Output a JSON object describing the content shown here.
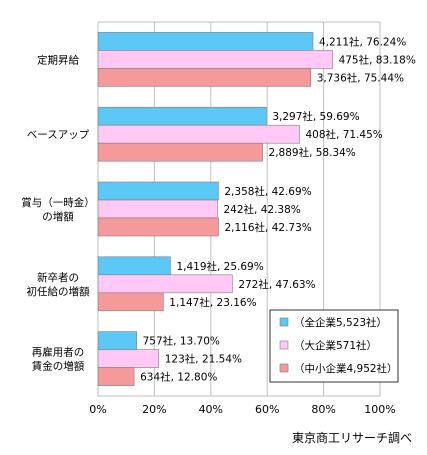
{
  "chart_data": {
    "type": "bar",
    "orientation": "horizontal",
    "categories": [
      [
        "定期昇給"
      ],
      [
        "ベースアップ"
      ],
      [
        "賞与（一時金）",
        "の増額"
      ],
      [
        "新卒者の",
        "初任給の増額"
      ],
      [
        "再雇用者の",
        "賃金の増額"
      ]
    ],
    "series": [
      {
        "name": "（全企業5,523社）",
        "color": "#5bc8f5",
        "values": [
          76.24,
          59.69,
          42.69,
          25.69,
          13.7
        ],
        "labels": [
          "4,211社, 76.24%",
          "3,297社, 59.69%",
          "2,358社, 42.69%",
          "1,419社, 25.69%",
          "757社, 13.70%"
        ]
      },
      {
        "name": "（大企業571社）",
        "color": "#ffc8f5",
        "values": [
          83.18,
          71.45,
          42.38,
          47.63,
          21.54
        ],
        "labels": [
          "475社, 83.18%",
          "408社, 71.45%",
          "242社, 42.38%",
          "272社, 47.63%",
          "123社, 21.54%"
        ]
      },
      {
        "name": "（中小企業4,952社）",
        "color": "#f59a9a",
        "values": [
          75.44,
          58.34,
          42.73,
          23.16,
          12.8
        ],
        "labels": [
          "3,736社, 75.44%",
          "2,889社, 58.34%",
          "2,116社, 42.73%",
          "1,147社, 23.16%",
          "634社, 12.80%"
        ]
      }
    ],
    "xlim": [
      0,
      100
    ],
    "ticks": [
      0,
      20,
      40,
      60,
      80,
      100
    ],
    "tick_labels": [
      "0%",
      "20%",
      "40%",
      "60%",
      "80%",
      "100%"
    ],
    "grid": "vertical",
    "legend_position": "bottom-right"
  },
  "source_note": "東京商工リサーチ調べ"
}
